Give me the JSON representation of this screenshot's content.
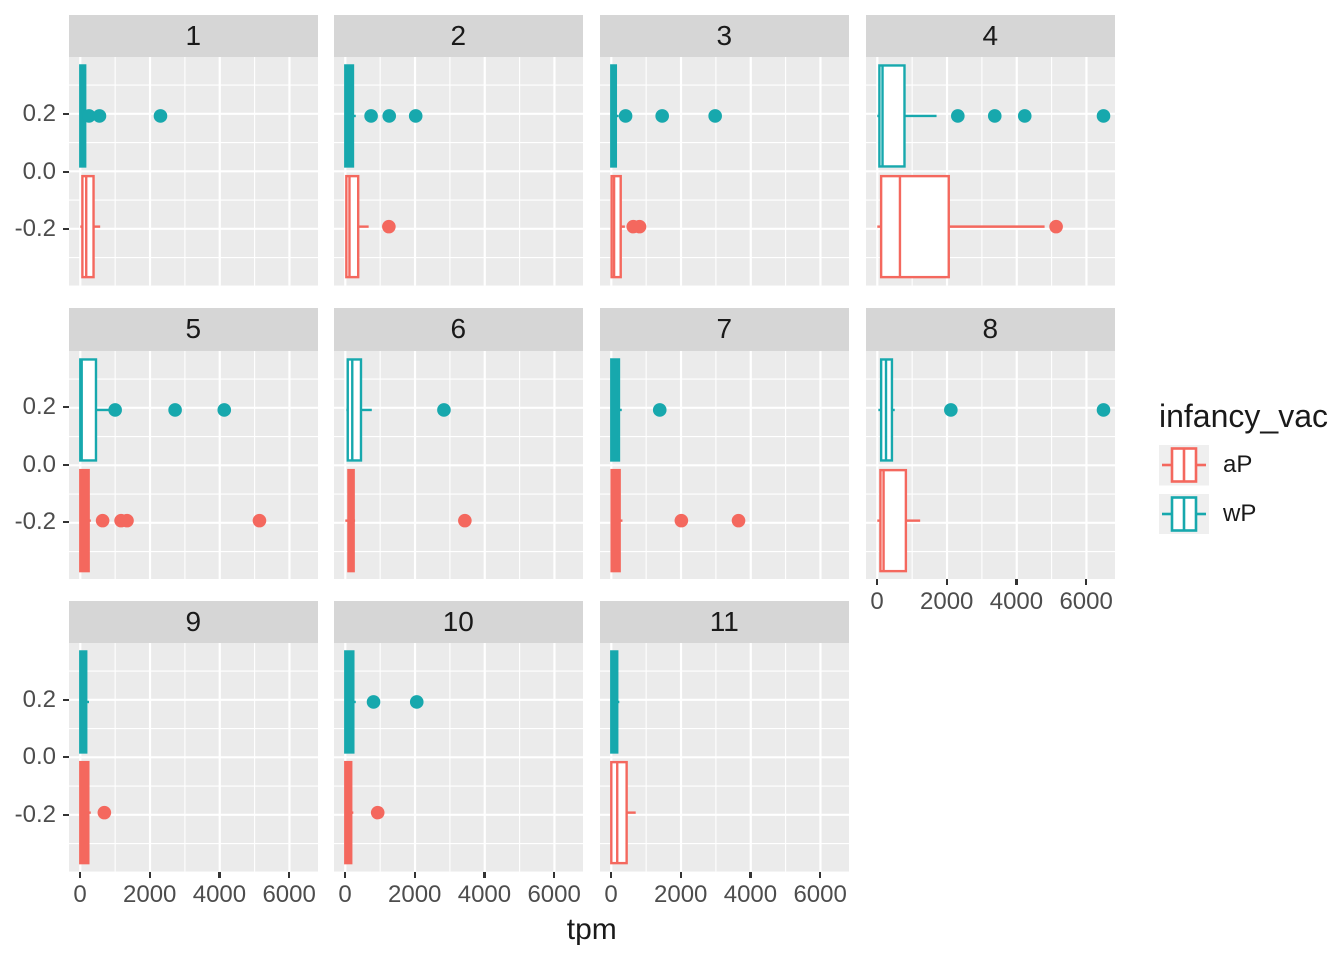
{
  "axes": {
    "x_title": "tpm",
    "x_tick_labels": [
      "0",
      "2000",
      "4000",
      "6000"
    ],
    "x_tick_values": [
      0,
      2000,
      4000,
      6000
    ],
    "x_minor_values": [
      1000,
      3000,
      5000
    ],
    "y_tick_labels": [
      "0.2",
      "0.0",
      "-0.2"
    ],
    "y_tick_values": [
      0.2,
      0.0,
      -0.2
    ],
    "y_minor_values": [
      0.3,
      0.1,
      -0.1,
      -0.3
    ]
  },
  "legend": {
    "title": "infancy_vac",
    "items": [
      {
        "label": "aP",
        "color": "#F4685E"
      },
      {
        "label": "wP",
        "color": "#17A8AD"
      }
    ]
  },
  "colors": {
    "aP": "#F4685E",
    "wP": "#17A8AD",
    "panel_bg": "#EBEBEB",
    "strip_bg": "#D6D6D6",
    "grid": "#FFFFFF",
    "axis_text": "#4D4D4D",
    "tick_mark": "#333333",
    "text": "#1A1A1A",
    "legend_key_bg": "#EFEFEF",
    "box_fill": "#FFFFFF"
  },
  "chart_data": {
    "type": "boxplot-faceted",
    "orientation": "horizontal",
    "x_label": "tpm",
    "x_range": [
      -325,
      6825
    ],
    "y_range": [
      -0.4,
      0.4
    ],
    "group_centers_y": {
      "wP": 0.19,
      "aP": -0.19
    },
    "groups": [
      "wP",
      "aP"
    ],
    "facets": [
      {
        "label": "1",
        "wP": {
          "whisker_lo": 0,
          "q1": 0,
          "median": 60,
          "q3": 140,
          "whisker_hi": 230,
          "outliers": [
            250,
            550,
            2300
          ]
        },
        "aP": {
          "whisker_lo": 0,
          "q1": 60,
          "median": 170,
          "q3": 380,
          "whisker_hi": 570,
          "outliers": []
        }
      },
      {
        "label": "2",
        "wP": {
          "whisker_lo": 0,
          "q1": 0,
          "median": 60,
          "q3": 220,
          "whisker_hi": 300,
          "outliers": [
            740,
            1260,
            2020
          ]
        },
        "aP": {
          "whisker_lo": 30,
          "q1": 30,
          "median": 120,
          "q3": 370,
          "whisker_hi": 670,
          "outliers": [
            1250
          ]
        }
      },
      {
        "label": "3",
        "wP": {
          "whisker_lo": 0,
          "q1": 0,
          "median": 40,
          "q3": 130,
          "whisker_hi": 210,
          "outliers": [
            410,
            1460,
            2980
          ]
        },
        "aP": {
          "whisker_lo": 0,
          "q1": 10,
          "median": 80,
          "q3": 270,
          "whisker_hi": 390,
          "outliers": [
            630,
            810
          ]
        }
      },
      {
        "label": "4",
        "wP": {
          "whisker_lo": 0,
          "q1": 60,
          "median": 150,
          "q3": 780,
          "whisker_hi": 1700,
          "outliers": [
            2310,
            3370,
            4230,
            6490
          ]
        },
        "aP": {
          "whisker_lo": 0,
          "q1": 110,
          "median": 650,
          "q3": 2050,
          "whisker_hi": 4800,
          "outliers": [
            5130
          ]
        }
      },
      {
        "label": "5",
        "wP": {
          "whisker_lo": 0,
          "q1": 0,
          "median": 40,
          "q3": 450,
          "whisker_hi": 860,
          "outliers": [
            1000,
            2720,
            4130
          ]
        },
        "aP": {
          "whisker_lo": 0,
          "q1": 0,
          "median": 60,
          "q3": 240,
          "whisker_hi": 300,
          "outliers": [
            640,
            1170,
            1340,
            5140
          ]
        }
      },
      {
        "label": "6",
        "wP": {
          "whisker_lo": 30,
          "q1": 70,
          "median": 200,
          "q3": 450,
          "whisker_hi": 760,
          "outliers": [
            2830
          ]
        },
        "aP": {
          "whisker_lo": 0,
          "q1": 90,
          "median": 160,
          "q3": 240,
          "whisker_hi": 280,
          "outliers": [
            3430
          ]
        }
      },
      {
        "label": "7",
        "wP": {
          "whisker_lo": 0,
          "q1": 0,
          "median": 80,
          "q3": 220,
          "whisker_hi": 300,
          "outliers": [
            1390
          ]
        },
        "aP": {
          "whisker_lo": 0,
          "q1": 10,
          "median": 90,
          "q3": 240,
          "whisker_hi": 320,
          "outliers": [
            2010,
            3650
          ]
        }
      },
      {
        "label": "8",
        "wP": {
          "whisker_lo": 30,
          "q1": 110,
          "median": 250,
          "q3": 420,
          "whisker_hi": 500,
          "outliers": [
            2110,
            6490
          ]
        },
        "aP": {
          "whisker_lo": 0,
          "q1": 90,
          "median": 180,
          "q3": 820,
          "whisker_hi": 1230,
          "outliers": []
        }
      },
      {
        "label": "9",
        "wP": {
          "whisker_lo": 0,
          "q1": 0,
          "median": 70,
          "q3": 170,
          "whisker_hi": 250,
          "outliers": []
        },
        "aP": {
          "whisker_lo": 0,
          "q1": 0,
          "median": 70,
          "q3": 230,
          "whisker_hi": 300,
          "outliers": [
            690
          ]
        }
      },
      {
        "label": "10",
        "wP": {
          "whisker_lo": 0,
          "q1": 0,
          "median": 60,
          "q3": 230,
          "whisker_hi": 300,
          "outliers": [
            810,
            2050
          ]
        },
        "aP": {
          "whisker_lo": 0,
          "q1": 0,
          "median": 50,
          "q3": 170,
          "whisker_hi": 230,
          "outliers": [
            930
          ]
        }
      },
      {
        "label": "11",
        "wP": {
          "whisker_lo": 0,
          "q1": 0,
          "median": 50,
          "q3": 170,
          "whisker_hi": 230,
          "outliers": []
        },
        "aP": {
          "whisker_lo": 0,
          "q1": 0,
          "median": 170,
          "q3": 440,
          "whisker_hi": 700,
          "outliers": []
        }
      }
    ]
  }
}
